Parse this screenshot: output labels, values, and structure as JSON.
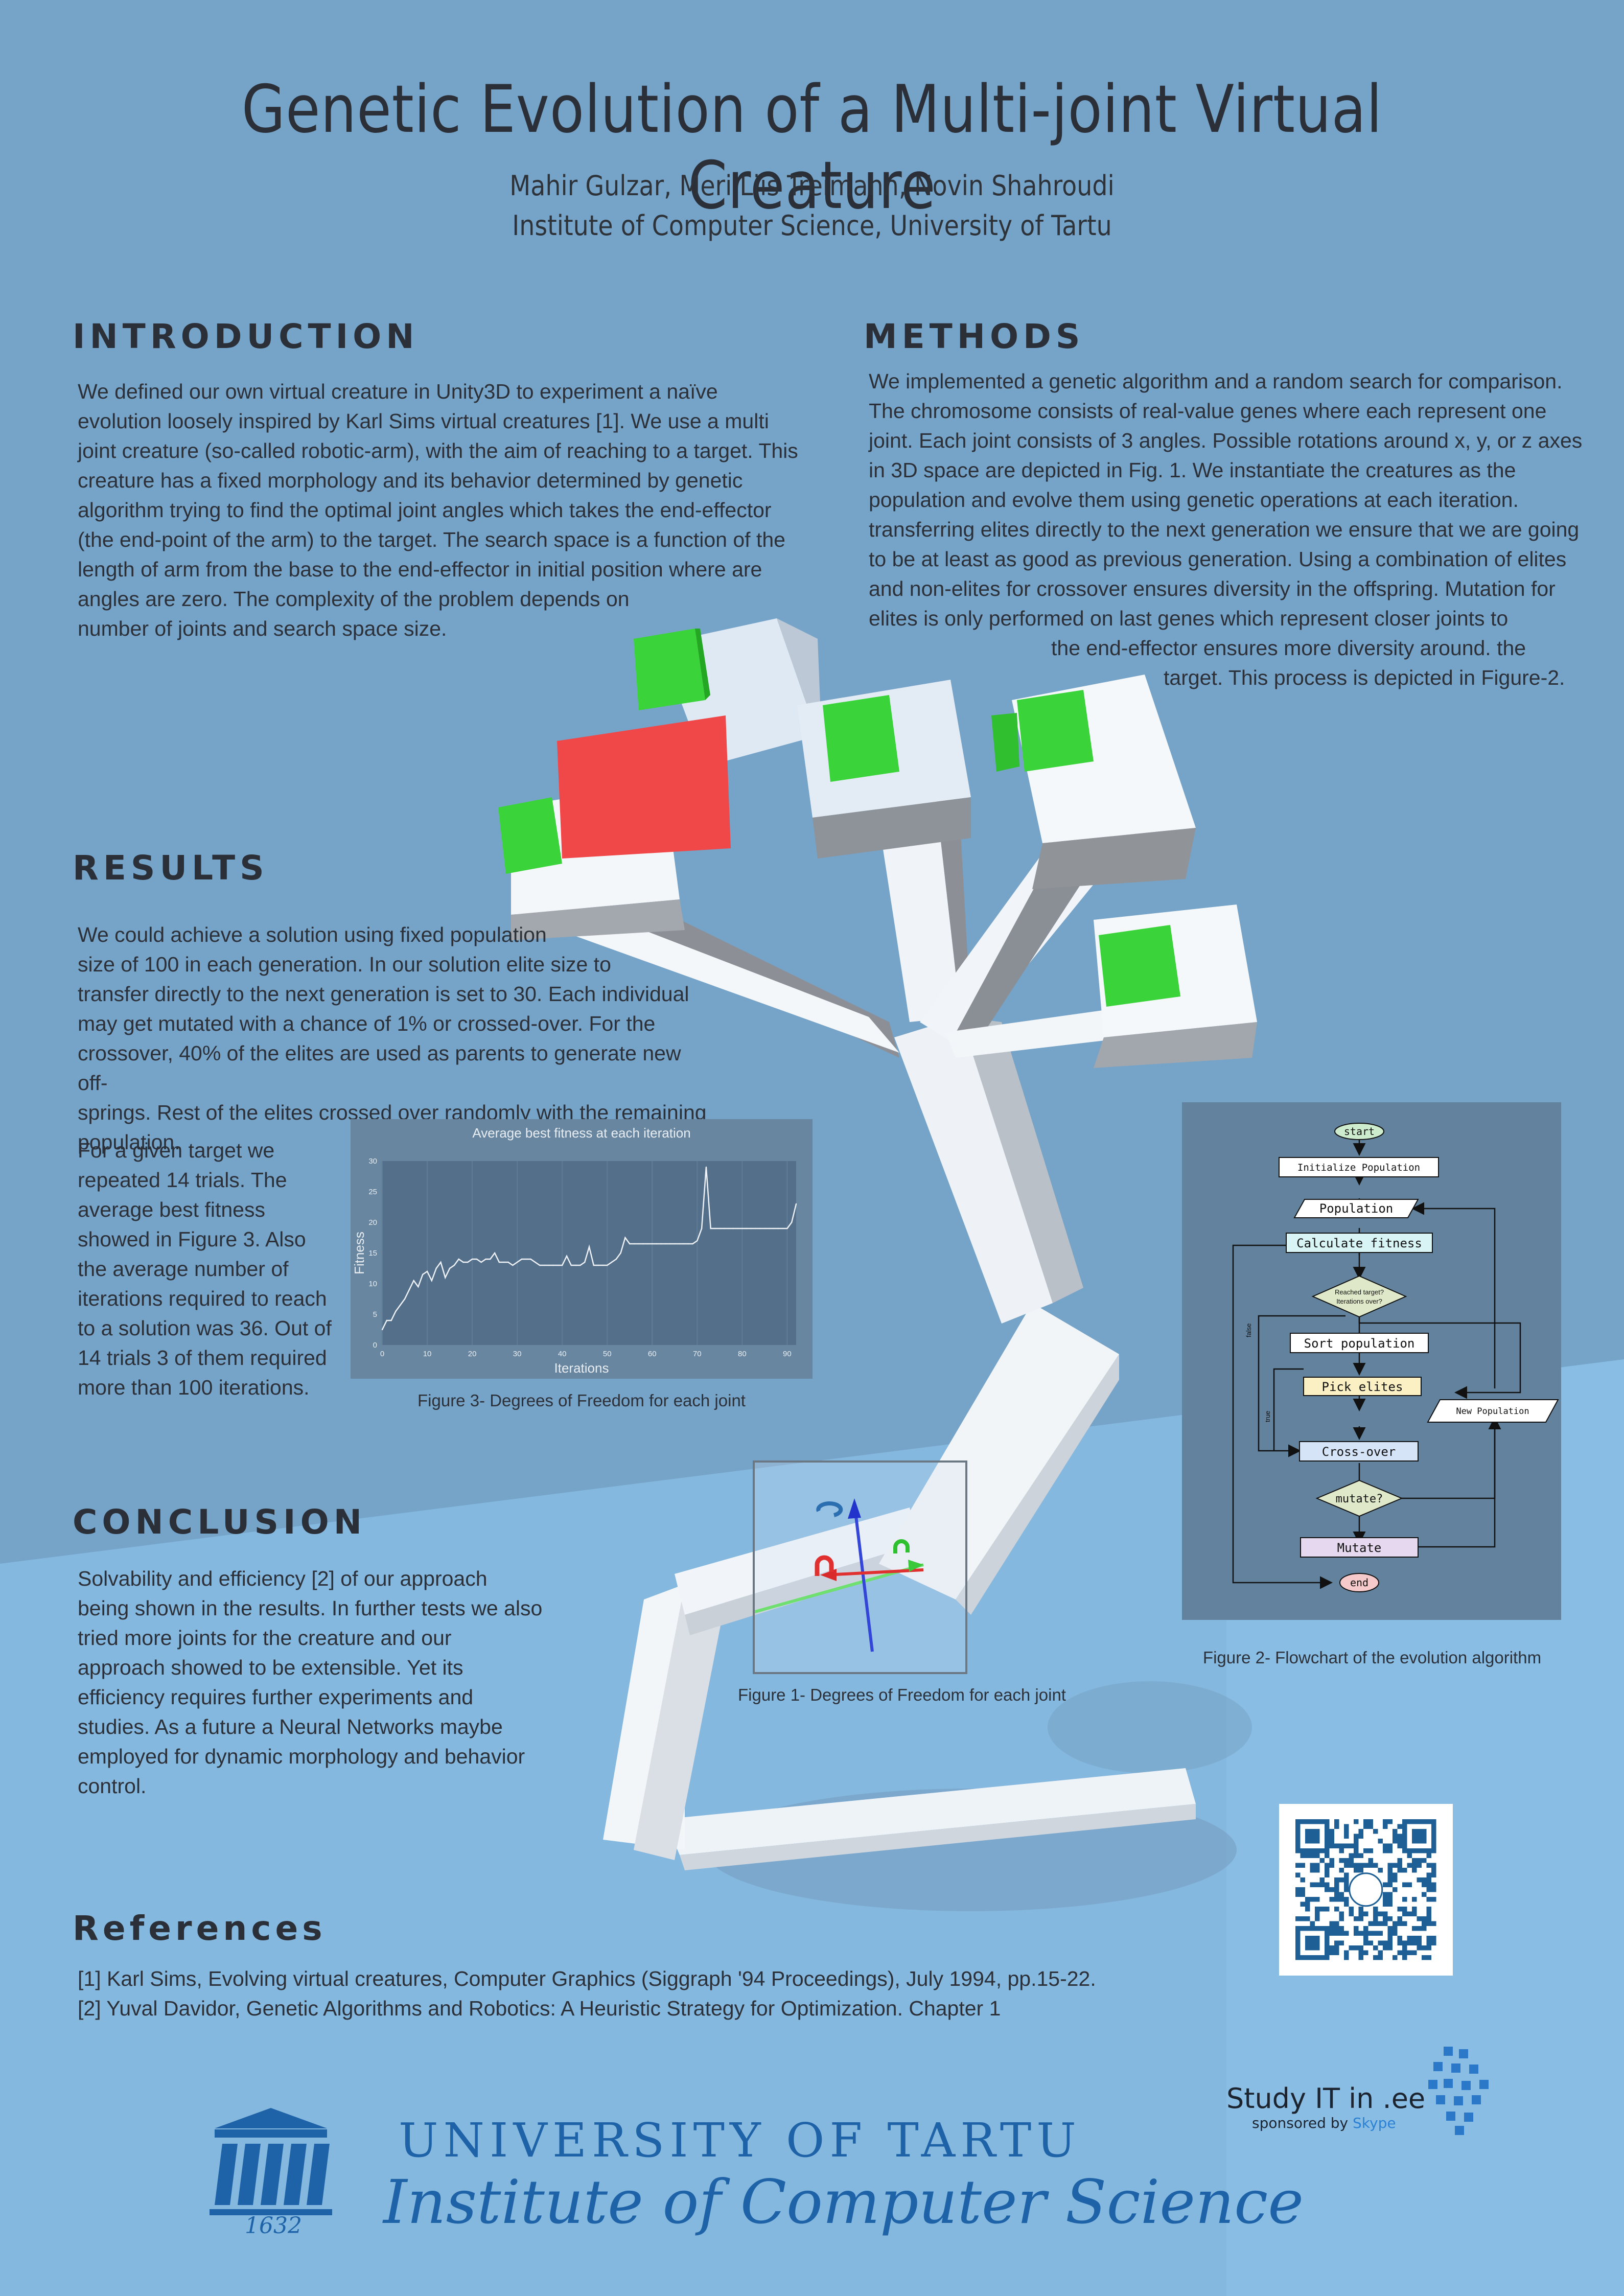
{
  "poster": {
    "title": "Genetic Evolution of a Multi-joint Virtual Creature",
    "authors": "Mahir Gulzar, Meri Liis Treimann, Novin Shahroudi",
    "institution": "Institute of Computer Science, University of Tartu"
  },
  "introduction": {
    "heading": "INTRODUCTION",
    "lines": [
      "We defined our own virtual creature in Unity3D to experiment a naïve",
      "evolution loosely inspired by Karl Sims virtual creatures [1]. We use a multi",
      "joint creature (so-called robotic-arm), with the aim of reaching to a target. This",
      "creature has a fixed morphology and its behavior determined by genetic",
      "algorithm trying to find the optimal joint angles which takes the end-effector",
      "(the end-point of the arm) to the target. The search space is a function of the",
      "length of arm from the base to the end-effector in initial position where are",
      "angles are zero. The complexity of the problem depends on",
      "number of joints and search space size."
    ]
  },
  "methods": {
    "heading": "METHODS",
    "lines": [
      "We implemented a genetic algorithm and a random search for comparison.",
      "The chromosome consists of real-value genes where each represent one",
      "joint. Each joint consists of 3 angles. Possible rotations around x, y, or z axes",
      "in 3D space are depicted in Fig. 1. We instantiate the creatures as the",
      "population and evolve them using genetic operations at each iteration.",
      "transferring elites directly to the next generation we ensure that we are going",
      "to be at least as good as previous generation. Using a combination of elites",
      "and non-elites for crossover ensures diversity in the offspring. Mutation for",
      "elites is only performed on last genes which represent closer joints to",
      "the end-effector ensures more diversity around. the",
      "target. This process is depicted in Figure-2."
    ]
  },
  "results": {
    "heading": "RESULTS",
    "lines": [
      "We could achieve a solution using fixed population",
      "size of 100 in each generation. In our solution elite size to",
      "transfer directly to the next generation is set to 30. Each individual",
      "may get mutated with a chance of 1% or crossed-over. For the",
      "crossover, 40% of the elites are used as parents to generate new off-",
      "springs. Rest of the elites crossed over randomly with the remaining",
      "population."
    ],
    "lines2": [
      "For a given target we",
      "repeated 14 trials. The",
      "average best fitness",
      "showed in Figure 3. Also",
      "the average number of",
      "iterations required to reach",
      "to a solution was 36. Out of",
      "14 trials 3 of them required",
      "more than 100 iterations."
    ]
  },
  "conclusion": {
    "heading": "CONCLUSION",
    "lines": [
      "Solvability and efficiency [2] of our approach",
      "being shown in the results. In further tests we also",
      "tried more joints for the creature and our",
      "approach showed to be extensible. Yet its",
      "efficiency requires further experiments and",
      "studies. As a future a Neural Networks maybe",
      "employed for dynamic morphology and behavior",
      "control."
    ]
  },
  "references": {
    "heading": "References",
    "items": [
      "[1] Karl Sims, Evolving virtual creatures, Computer Graphics (Siggraph '94 Proceedings), July 1994, pp.15-22.",
      "[2] Yuval Davidor, Genetic Algorithms and Robotics: A Heuristic Strategy for Optimization. Chapter 1"
    ]
  },
  "figures": {
    "fig1_caption": "Figure 1- Degrees of Freedom for each joint",
    "fig2_caption": "Figure 2- Flowchart of the evolution algorithm",
    "fig3_caption": "Figure 3- Degrees of Freedom for each joint"
  },
  "flowchart": {
    "nodes": {
      "start": "start",
      "init": "Initialize Population",
      "population": "Population",
      "fitness": "Calculate fitness",
      "decision1_line1": "Reached target?",
      "decision1_line2": "Iterations over?",
      "sort": "Sort population",
      "elites": "Pick elites",
      "new_population": "New Population",
      "crossover": "Cross-over",
      "mutate": "mutate?",
      "mutate_box": "Mutate",
      "end": "end"
    },
    "edge_labels": [
      "false",
      "true"
    ]
  },
  "chart_data": {
    "type": "line",
    "title": "Average best fitness at each iteration",
    "xlabel": "Iterations",
    "ylabel": "Fitness",
    "xlim": [
      0,
      92
    ],
    "ylim": [
      0,
      30
    ],
    "xticks": [
      0,
      10,
      20,
      30,
      40,
      50,
      60,
      70,
      80,
      90
    ],
    "yticks": [
      0,
      5,
      10,
      15,
      20,
      25,
      30
    ],
    "grid": true,
    "series": [
      {
        "x": [
          0,
          1,
          2,
          3,
          4,
          5,
          6,
          7,
          8,
          9,
          10,
          11,
          12,
          13,
          14,
          15,
          16,
          17,
          18,
          19,
          20,
          21,
          22,
          23,
          24,
          25,
          26,
          27,
          28,
          29,
          30,
          31,
          32,
          33,
          34,
          35,
          36,
          37,
          38,
          39,
          40,
          41,
          42,
          43,
          44,
          45,
          46,
          47,
          48,
          49,
          50,
          51,
          52,
          53,
          54,
          55,
          56,
          57,
          58,
          59,
          60,
          61,
          62,
          63,
          64,
          65,
          66,
          67,
          68,
          69,
          70,
          71,
          72,
          73,
          74,
          75,
          76,
          77,
          78,
          79,
          80,
          81,
          82,
          83,
          84,
          85,
          86,
          87,
          88,
          89,
          90,
          91,
          92
        ],
        "y": [
          2.5,
          4,
          4,
          5.5,
          6.5,
          7.5,
          9,
          10.5,
          9.5,
          11.5,
          12,
          10.5,
          12.5,
          13.5,
          11,
          12.5,
          13,
          14,
          13.5,
          13.5,
          14,
          14,
          13.5,
          14,
          14,
          15,
          13.5,
          13.5,
          13.5,
          13,
          13.5,
          14,
          14,
          14,
          13.5,
          13,
          13,
          13,
          13,
          13,
          13,
          14.5,
          13,
          13,
          13,
          13.5,
          16,
          13,
          13,
          13,
          13,
          13.5,
          14,
          15,
          17.5,
          16.5,
          16.5,
          16.5,
          16.5,
          16.5,
          16.5,
          16.5,
          16.5,
          16.5,
          16.5,
          16.5,
          16.5,
          16.5,
          16.5,
          16.5,
          17,
          19,
          29,
          19,
          19,
          19,
          19,
          19,
          19,
          19,
          19,
          19,
          19,
          19,
          19,
          19,
          19,
          19,
          19,
          19,
          19,
          20,
          23
        ]
      }
    ]
  },
  "qr": {
    "alt": "QR code"
  },
  "branding": {
    "study_it": "Study IT in .ee",
    "sponsored_by": "sponsored by",
    "sponsor": "Skype",
    "university": "UNIVERSITY OF TARTU",
    "institute": "Institute of Computer Science",
    "year": "1632"
  },
  "colors": {
    "background": "#76a3c8",
    "background_lower": "#85b8df",
    "target_cube": "#f04444",
    "effector_cube": "#3ad43a",
    "arm": "#f4f7fa",
    "arm_shadow": "#8e9298",
    "brand_blue": "#1e63a8"
  }
}
